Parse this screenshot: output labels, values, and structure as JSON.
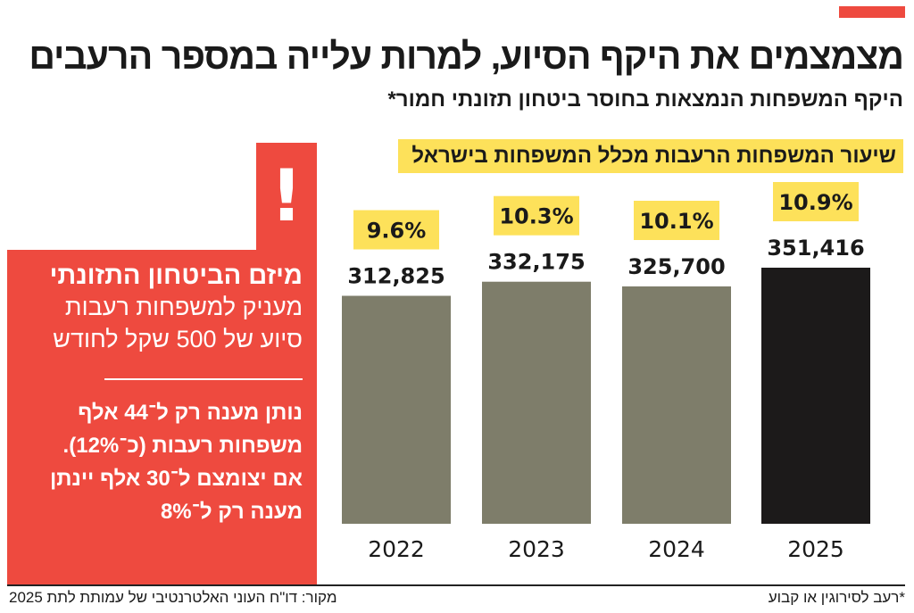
{
  "header": {
    "title": "מצמצמים את היקף הסיוע, למרות עלייה במספר הרעבים",
    "subtitle": "היקף המשפחות הנמצאות בחוסר ביטחון תזונתי חמור*"
  },
  "legend_label": "שיעור המשפחות הרעבות מכלל המשפחות בישראל",
  "info_box": {
    "exclamation": "!",
    "heading": "מיזם הביטחון התזונתי",
    "line1": "מעניק למשפחות רעבות",
    "line2": "סיוע של 500 שקל לחודש",
    "note1": "נותן מענה רק ל־44 אלף",
    "note2": "משפחות רעבות (כ־12%).",
    "note3": "אם יצומצם ל־30 אלף יינתן",
    "note4": "מענה רק ל־8%"
  },
  "footer": {
    "source": "מקור: דו\"ח העוני האלטרנטיבי של עמותת לתת 2025",
    "footnote": "*רעב לסירוגין או קבוע"
  },
  "colors": {
    "accent": "#ee4a3f",
    "bar": "#7e7d6a",
    "bar_highlight": "#1c1a1a",
    "pct_box": "#fde15a"
  },
  "chart_data": {
    "type": "bar",
    "categories": [
      "2022",
      "2023",
      "2024",
      "2025"
    ],
    "values": [
      312825,
      332175,
      325700,
      351416
    ],
    "value_labels": [
      "312,825",
      "332,175",
      "325,700",
      "351,416"
    ],
    "percent_labels": [
      "9.6%",
      "10.3%",
      "10.1%",
      "10.9%"
    ],
    "highlight_index": 3,
    "ylim": [
      0,
      351416
    ],
    "grid": false
  }
}
